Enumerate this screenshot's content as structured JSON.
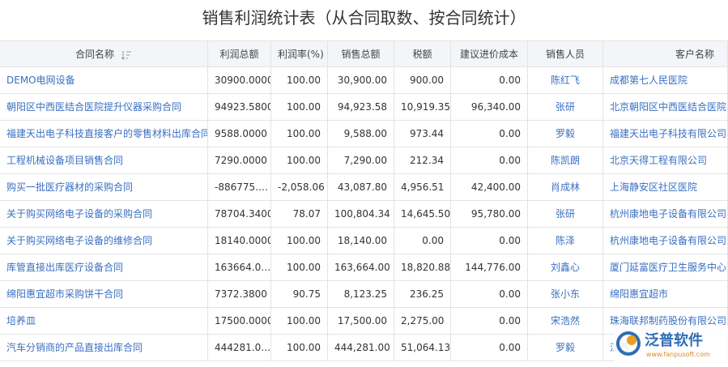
{
  "title": "销售利润统计表（从合同取数、按合同统计）",
  "table": {
    "headers": [
      "合同名称",
      "利润总额",
      "利润率(%)",
      "销售总额",
      "税额",
      "建议进价成本",
      "销售人员",
      "客户名称"
    ],
    "rows": [
      [
        "DEMO电网设备",
        "30900.0000",
        "100.00",
        "30,900.00",
        "900.00",
        "0.00",
        "陈红飞",
        "成都第七人民医院"
      ],
      [
        "朝阳区中西医结合医院提升仪器采购合同",
        "94923.5800",
        "100.00",
        "94,923.58",
        "10,919.35",
        "96,340.00",
        "张研",
        "北京朝阳区中西医结合医院"
      ],
      [
        "福建天出电子科技直接客户的零售材料出库合同",
        "9588.0000",
        "100.00",
        "9,588.00",
        "973.44",
        "0.00",
        "罗毅",
        "福建天出电子科技有限公司"
      ],
      [
        "工程机械设备项目销售合同",
        "7290.0000",
        "100.00",
        "7,290.00",
        "212.34",
        "0.00",
        "陈凯朗",
        "北京天得工程有限公司"
      ],
      [
        "购买一批医疗器材的采购合同",
        "-886775.…",
        "-2,058.06",
        "43,087.80",
        "4,956.51",
        "42,400.00",
        "肖成林",
        "上海静安区社区医院"
      ],
      [
        "关于购买网络电子设备的采购合同",
        "78704.3400",
        "78.07",
        "100,804.34",
        "14,645.50",
        "95,780.00",
        "张研",
        "杭州康地电子设备有限公司"
      ],
      [
        "关于购买网络电子设备的维修合同",
        "18140.0000",
        "100.00",
        "18,140.00",
        "0.00",
        "0.00",
        "陈泽",
        "杭州康地电子设备有限公司"
      ],
      [
        "库管直接出库医疗设备合同",
        "163664.0…",
        "100.00",
        "163,664.00",
        "18,820.88",
        "144,776.00",
        "刘鑫心",
        "厦门延富医疗卫生服务中心"
      ],
      [
        "绵阳惠宜超市采购饼干合同",
        "7372.3800",
        "90.75",
        "8,123.25",
        "236.25",
        "0.00",
        "张小东",
        "绵阳惠宜超市"
      ],
      [
        "培养皿",
        "17500.0000",
        "100.00",
        "17,500.00",
        "2,275.00",
        "0.00",
        "宋浩然",
        "珠海联邦制药股份有限公司"
      ],
      [
        "汽车分销商的产品直接出库合同",
        "444281.0…",
        "100.00",
        "444,281.00",
        "51,064.13",
        "0.00",
        "罗毅",
        "江西"
      ]
    ]
  },
  "watermark": {
    "name": "泛普软件",
    "url": "www.fanpusoft.com"
  }
}
